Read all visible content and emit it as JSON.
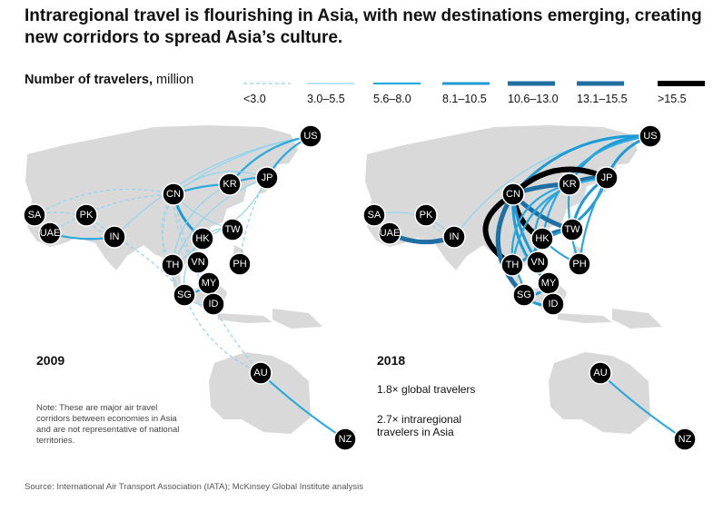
{
  "title": "Intraregional travel is flourishing in Asia, with new destinations emerging, creating new corridors to spread Asia’s culture.",
  "legend": {
    "title_bold": "Number of travelers,",
    "title_unit": " million",
    "items": [
      {
        "label": "<3.0",
        "color": "#8fd4ec",
        "dashed": true
      },
      {
        "label": "3.0–5.5",
        "color": "#8fd4ec",
        "dashed": false
      },
      {
        "label": "5.6–8.0",
        "color": "#29a9dd",
        "dashed": false
      },
      {
        "label": "8.1–10.5",
        "color": "#1e9ad6",
        "dashed": false
      },
      {
        "label": "10.6–13.0",
        "color": "#1f6fa3",
        "dashed": false
      },
      {
        "label": "13.1–15.5",
        "color": "#1f6fa3",
        "dashed": false
      },
      {
        "label": ">15.5",
        "color": "#000000",
        "dashed": false
      }
    ]
  },
  "maps": {
    "left": {
      "year": "2009",
      "nodes": [
        "US",
        "KR",
        "JP",
        "CN",
        "PK",
        "SA",
        "UAE",
        "IN",
        "TW",
        "HK",
        "TH",
        "VN",
        "PH",
        "MY",
        "SG",
        "ID",
        "AU",
        "NZ"
      ]
    },
    "right": {
      "year": "2018",
      "stats": [
        "1.8× global travelers",
        "2.7× intraregional travelers in Asia"
      ],
      "nodes": [
        "US",
        "KR",
        "JP",
        "CN",
        "PK",
        "SA",
        "UAE",
        "IN",
        "TW",
        "HK",
        "TH",
        "VN",
        "PH",
        "MY",
        "SG",
        "ID",
        "AU",
        "NZ"
      ]
    }
  },
  "note": "Note: These are major air travel corridors between economies in Asia and are not representative of national territories.",
  "source": "Source: International Air Transport Association (IATA); McKinsey Global Institute analysis"
}
